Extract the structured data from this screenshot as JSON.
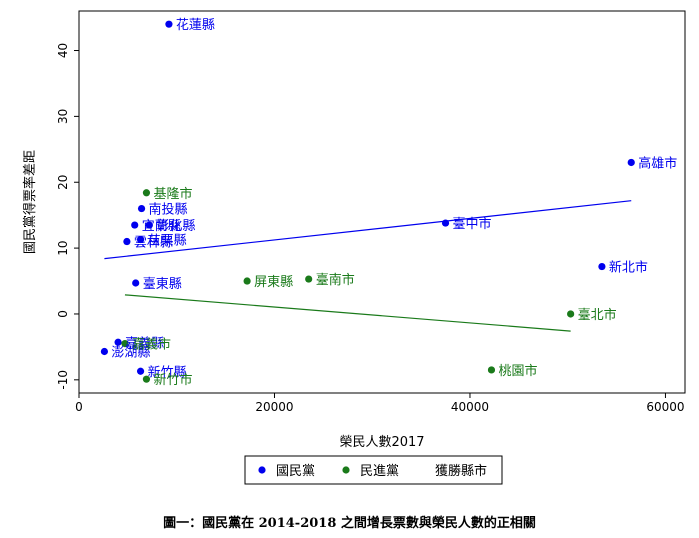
{
  "caption": "圖一：國民黨在 2014-2018 之間增長票數與榮民人數的正相關",
  "chart_data": {
    "type": "scatter",
    "xlabel": "榮民人數2017",
    "ylabel": "國民黨得票率差距",
    "xlim": [
      0,
      62000
    ],
    "ylim": [
      -12,
      46
    ],
    "xticks": [
      0,
      20000,
      40000,
      60000
    ],
    "yticks": [
      -10,
      0,
      10,
      20,
      30,
      40
    ],
    "grid": false,
    "legend_position": "bottom",
    "legend": [
      "國民黨",
      "民進黨",
      "獲勝縣市"
    ],
    "colors": {
      "kmt": "#0000ee",
      "dpp": "#1a7a1a"
    },
    "series": [
      {
        "name": "國民黨",
        "color": "#0000ee",
        "points": [
          {
            "label": "花蓮縣",
            "x": 9200,
            "y": 44
          },
          {
            "label": "高雄市",
            "x": 56500,
            "y": 23
          },
          {
            "label": "南投縣",
            "x": 6400,
            "y": 16
          },
          {
            "label": "宜蘭縣",
            "x": 5700,
            "y": 13.5
          },
          {
            "label": "彰化縣",
            "x": 7200,
            "y": 13.5
          },
          {
            "label": "臺中市",
            "x": 37500,
            "y": 13.8
          },
          {
            "label": "苗栗縣",
            "x": 6300,
            "y": 11.3
          },
          {
            "label": "雲林縣",
            "x": 4900,
            "y": 11
          },
          {
            "label": "新北市",
            "x": 53500,
            "y": 7.2
          },
          {
            "label": "臺東縣",
            "x": 5800,
            "y": 4.7
          },
          {
            "label": "嘉義縣",
            "x": 4000,
            "y": -4.3
          },
          {
            "label": "澎湖縣",
            "x": 2600,
            "y": -5.7
          },
          {
            "label": "新竹縣",
            "x": 6300,
            "y": -8.7
          }
        ]
      },
      {
        "name": "民進黨",
        "color": "#1a7a1a",
        "points": [
          {
            "label": "基隆市",
            "x": 6900,
            "y": 18.4
          },
          {
            "label": "屏東縣",
            "x": 17200,
            "y": 5
          },
          {
            "label": "臺南市",
            "x": 23500,
            "y": 5.3
          },
          {
            "label": "臺北市",
            "x": 50300,
            "y": 0
          },
          {
            "label": "嘉義市",
            "x": 4700,
            "y": -4.5
          },
          {
            "label": "新竹市",
            "x": 6900,
            "y": -9.9
          },
          {
            "label": "桃園市",
            "x": 42200,
            "y": -8.5
          }
        ]
      }
    ],
    "fit_lines": [
      {
        "series": "國民黨",
        "x": [
          2600,
          56500
        ],
        "y": [
          8.4,
          17.2
        ]
      },
      {
        "series": "民進黨",
        "x": [
          4700,
          50300
        ],
        "y": [
          2.9,
          -2.6
        ]
      }
    ]
  }
}
